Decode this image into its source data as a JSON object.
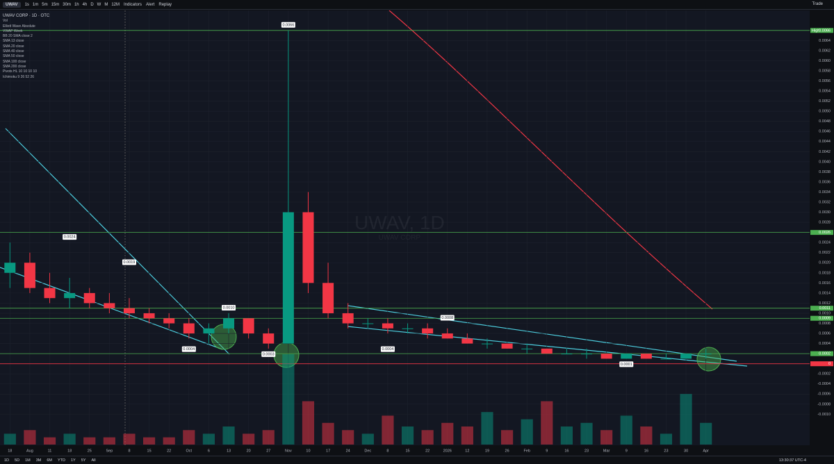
{
  "toolbar": {
    "symbol": "UWAV",
    "timeframes": [
      "1s",
      "1m",
      "5m",
      "15m",
      "30m",
      "1h",
      "4h",
      "D",
      "W",
      "M",
      "12M"
    ],
    "indicators": "Indicators",
    "alert": "Alert",
    "replay": "Replay",
    "trade": "Trade"
  },
  "legend": {
    "title": "UWAV CORP · 1D · OTC",
    "items": [
      "Vol",
      "Elliott Wave Absolute",
      "VWAP Week",
      "BB 20 SMA close 2",
      "SMA 13 close",
      "SMA 20 close",
      "SMA 40 close",
      "SMA 50 close",
      "SMA 100 close",
      "SMA 200 close",
      "Pivots HL 10 10 10 10",
      "Ichimoku 9 26 52 26"
    ]
  },
  "watermark": {
    "symbol": "UWAV, 1D",
    "name": "UWAV CORP"
  },
  "chart_data": {
    "type": "candlestick",
    "categories": [
      "18",
      "Aug",
      "11",
      "18",
      "25",
      "Sep",
      "8",
      "15",
      "22",
      "Oct",
      "6",
      "13",
      "20",
      "27",
      "Nov",
      "10",
      "17",
      "24",
      "Dec",
      "8",
      "15",
      "22",
      "2026",
      "12",
      "19",
      "26",
      "Feb",
      "9",
      "16",
      "23",
      "Mar",
      "9",
      "16",
      "23",
      "30",
      "Apr"
    ],
    "open": [
      0.0018,
      0.002,
      0.0015,
      0.0013,
      0.0014,
      0.0012,
      0.0011,
      0.001,
      0.0009,
      0.0008,
      0.0006,
      0.0007,
      0.0009,
      0.0006,
      0.0004,
      0.003,
      0.0016,
      0.001,
      0.0008,
      0.0008,
      0.0007,
      0.0007,
      0.0006,
      0.0005,
      0.0004,
      0.0004,
      0.0003,
      0.0003,
      0.0002,
      0.0002,
      0.0002,
      0.0001,
      0.0002,
      0.0001,
      0.0001,
      0.0002
    ],
    "high": [
      0.0024,
      0.0022,
      0.0018,
      0.0017,
      0.0015,
      0.0014,
      0.0013,
      0.0011,
      0.001,
      0.0009,
      0.0008,
      0.001,
      0.0009,
      0.0007,
      0.0066,
      0.0034,
      0.002,
      0.0012,
      0.0009,
      0.0009,
      0.0008,
      0.0008,
      0.0007,
      0.0006,
      0.0005,
      0.0004,
      0.0004,
      0.0003,
      0.0003,
      0.0003,
      0.0002,
      0.0002,
      0.0002,
      0.0002,
      0.0002,
      0.0003
    ],
    "low": [
      0.0015,
      0.0014,
      0.0012,
      0.0011,
      0.0011,
      0.001,
      0.0009,
      0.0008,
      0.0007,
      0.0005,
      0.0004,
      0.0006,
      0.0005,
      0.0003,
      0.0004,
      0.0014,
      0.0009,
      0.0007,
      0.0007,
      0.0006,
      0.0006,
      0.0005,
      0.0005,
      0.0004,
      0.0003,
      0.0003,
      0.0002,
      0.0002,
      0.0002,
      0.0001,
      0.0001,
      0.0001,
      0.0001,
      0.0001,
      0.0001,
      0.0001
    ],
    "close": [
      0.002,
      0.0015,
      0.0013,
      0.0014,
      0.0012,
      0.0011,
      0.001,
      0.0009,
      0.0008,
      0.0006,
      0.0007,
      0.0009,
      0.0006,
      0.0004,
      0.003,
      0.0016,
      0.001,
      0.0008,
      0.0008,
      0.0007,
      0.0007,
      0.0006,
      0.0005,
      0.0004,
      0.0004,
      0.0003,
      0.0003,
      0.0002,
      0.0002,
      0.0002,
      0.0001,
      0.0002,
      0.0001,
      0.0001,
      0.0002,
      0.0002
    ],
    "volume": [
      3,
      4,
      2,
      3,
      2,
      2,
      3,
      2,
      2,
      4,
      3,
      5,
      3,
      4,
      25,
      12,
      6,
      4,
      3,
      8,
      5,
      4,
      6,
      5,
      9,
      4,
      7,
      12,
      5,
      6,
      4,
      8,
      5,
      3,
      14,
      6
    ],
    "up_color": "#089981",
    "down_color": "#f23645",
    "ylim": [
      -0.0016,
      0.0069
    ],
    "yticks": [
      0.0064,
      0.0062,
      {
        "value": 0.006,
        "label": "0.0060"
      },
      0.0058,
      0.0056,
      0.0054,
      0.0052,
      {
        "value": 0.005,
        "label": "0.0050"
      },
      0.0048,
      0.0046,
      0.0044,
      0.0042,
      {
        "value": 0.004,
        "label": "0.0040"
      },
      0.0038,
      0.0036,
      0.0034,
      0.0032,
      {
        "value": 0.003,
        "label": "0.0030"
      },
      0.0028,
      0.0026,
      0.0024,
      0.0022,
      {
        "value": 0.002,
        "label": "0.0020"
      },
      0.0018,
      0.0016,
      0.0014,
      0.0012,
      {
        "value": 0.001,
        "label": "0.0010"
      },
      0.0008,
      0.0006,
      0.0004,
      0.0002,
      {
        "value": 0,
        "label": "0.0000"
      },
      -0.0002,
      -0.0004,
      -0.0006,
      -0.0008,
      {
        "value": -0.001,
        "label": "-0.0010"
      }
    ],
    "grid": true,
    "high_label": "High",
    "levels": [
      {
        "value": 0.0066,
        "color": "#4caf50"
      },
      {
        "value": 0.0026,
        "color": "#4caf50"
      },
      {
        "value": 0.0011,
        "color": "#4caf50"
      },
      {
        "value": 0.0009,
        "color": "#4caf50"
      },
      {
        "value": 0.0002,
        "color": "#4caf50"
      },
      {
        "value": 0,
        "color": "#f23645"
      }
    ],
    "annotations": [
      {
        "label": "0.0066",
        "value": 0.0066
      },
      {
        "label": "0.0024",
        "value": 0.0024
      },
      {
        "label": "0.0019",
        "value": 0.0019
      },
      {
        "label": "0.0010",
        "value": 0.001
      },
      {
        "label": "0.0004",
        "value": 0.0004
      },
      {
        "label": "0.0003",
        "value": 0.0003
      },
      {
        "label": "0.0004",
        "value": 0.0004
      },
      {
        "label": "0.0001",
        "value": 0.0001
      },
      {
        "label": "0.0008",
        "value": 0.0008
      }
    ]
  },
  "range_bar": {
    "ranges": [
      "1D",
      "5D",
      "1M",
      "3M",
      "6M",
      "YTD",
      "1Y",
      "5Y",
      "All"
    ],
    "clock": "13:30:37 UTC-4"
  }
}
